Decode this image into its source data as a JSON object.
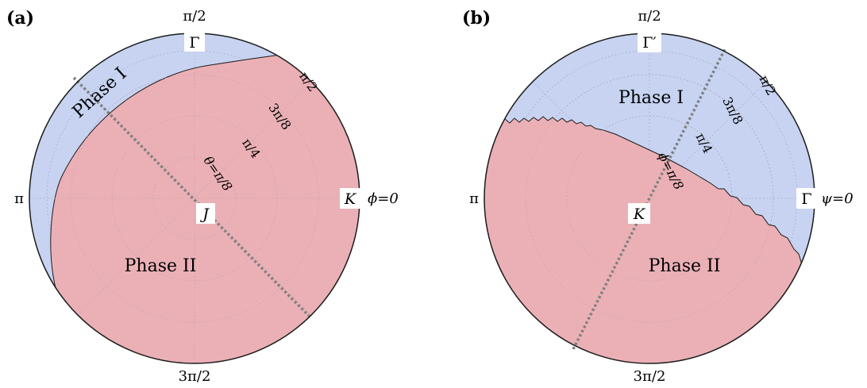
{
  "colors": {
    "phase1": "#c7d3f1",
    "phase2": "#ebb0b6",
    "border": "#1c1c1c",
    "grid": "#9aa6c4",
    "dashed_line": "#808080"
  },
  "panel_a": {
    "tag": "(a)",
    "angle_top": "π/2",
    "angle_left": "π",
    "angle_bottom": "3π/2",
    "angle_right": "ϕ=0",
    "point_top": "Γ",
    "point_center": "J",
    "point_right": "K",
    "phase1_label": "Phase I",
    "phase2_label": "Phase II",
    "radial_labels": [
      "θ=π/8",
      "π/4",
      "3π/8",
      "π/2"
    ]
  },
  "panel_b": {
    "tag": "(b)",
    "angle_top": "π/2",
    "angle_left": "π",
    "angle_bottom": "3π/2",
    "angle_right": "ψ=0",
    "point_top": "Γ′",
    "point_center": "K",
    "point_right": "Γ",
    "phase1_label": "Phase I",
    "phase2_label": "Phase II",
    "radial_labels": [
      "ϕ=π/8",
      "π/4",
      "3π/8",
      "π/2"
    ]
  }
}
